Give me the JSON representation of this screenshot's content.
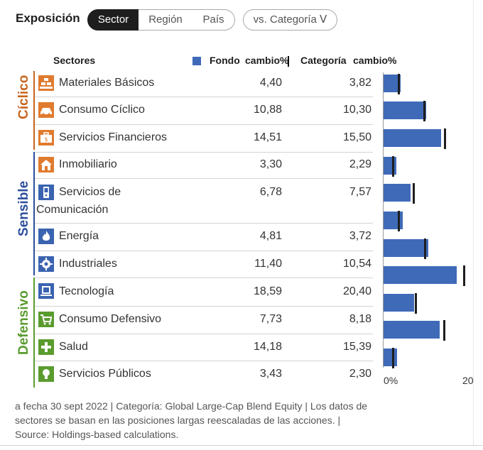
{
  "header": {
    "title": "Exposición",
    "segments": [
      "Sector",
      "Región",
      "País"
    ],
    "active_segment": "Sector",
    "compare_label": "vs. Categoría ᐯ"
  },
  "table": {
    "col_sectors": "Sectores",
    "col_fund": "Fondo",
    "col_fund_change": "cambio%",
    "col_category": "Categoría",
    "col_category_change": "cambio%"
  },
  "groups": {
    "ciclico": "Cíclico",
    "sensible": "Sensible",
    "defensivo": "Defensivo"
  },
  "colors": {
    "ciclico": "#c8641e",
    "sensible": "#2c4d9c",
    "defensivo": "#5a9b2e",
    "bar": "#3f6ab8"
  },
  "rows": [
    {
      "name": "Materiales Básicos",
      "fund": "4,40",
      "category": "3,82",
      "icon": "materials-icon"
    },
    {
      "name": "Consumo Cíclico",
      "fund": "10,88",
      "category": "10,30",
      "icon": "car-icon"
    },
    {
      "name": "Servicios Financieros",
      "fund": "14,51",
      "category": "15,50",
      "icon": "briefcase-icon"
    },
    {
      "name": "Inmobiliario",
      "fund": "3,30",
      "category": "2,29",
      "icon": "house-icon"
    },
    {
      "name1": "Servicios de",
      "name2": "Comunicación",
      "fund": "6,78",
      "category": "7,57",
      "icon": "phone-icon"
    },
    {
      "name": "Energía",
      "fund": "4,81",
      "category": "3,72",
      "icon": "flame-icon"
    },
    {
      "name": "Industriales",
      "fund": "11,40",
      "category": "10,54",
      "icon": "gear-icon"
    },
    {
      "name": "Tecnología",
      "fund": "18,59",
      "category": "20,40",
      "icon": "computer-icon"
    },
    {
      "name": "Consumo Defensivo",
      "fund": "7,73",
      "category": "8,18",
      "icon": "cart-icon"
    },
    {
      "name": "Salud",
      "fund": "14,18",
      "category": "15,39",
      "icon": "cross-icon"
    },
    {
      "name": "Servicios Públicos",
      "fund": "3,43",
      "category": "2,30",
      "icon": "bulb-icon"
    }
  ],
  "chart_data": {
    "type": "bar",
    "categories": [
      "Materiales Básicos",
      "Consumo Cíclico",
      "Servicios Financieros",
      "Inmobiliario",
      "Servicios de Comunicación",
      "Energía",
      "Industriales",
      "Tecnología",
      "Consumo Defensivo",
      "Salud",
      "Servicios Públicos"
    ],
    "series": [
      {
        "name": "Fondo",
        "values": [
          4.4,
          10.88,
          14.51,
          3.3,
          6.78,
          4.81,
          11.4,
          18.59,
          7.73,
          14.18,
          3.43
        ]
      },
      {
        "name": "Categoría",
        "values": [
          3.82,
          10.3,
          15.5,
          2.29,
          7.57,
          3.72,
          10.54,
          20.4,
          8.18,
          15.39,
          2.3
        ]
      }
    ],
    "xlim": [
      0,
      20
    ],
    "tick_labels": [
      "0%",
      "20"
    ]
  },
  "footnote": "a fecha 30 sept 2022 | Categoría: Global Large-Cap Blend Equity | Los datos de sectores se basan en las posiciones largas reescaladas de las acciones. | Source: Holdings-based calculations."
}
